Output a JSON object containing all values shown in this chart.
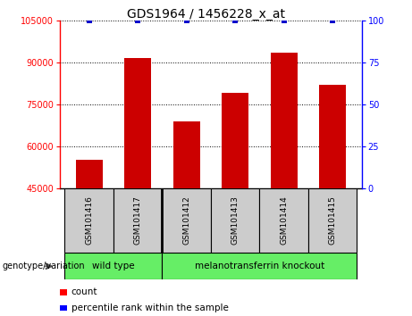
{
  "title": "GDS1964 / 1456228_x_at",
  "samples": [
    "GSM101416",
    "GSM101417",
    "GSM101412",
    "GSM101413",
    "GSM101414",
    "GSM101415"
  ],
  "counts": [
    55000,
    91500,
    69000,
    79000,
    93500,
    82000
  ],
  "percentile_ranks": [
    100,
    100,
    100,
    100,
    100,
    100
  ],
  "ylim_left": [
    45000,
    105000
  ],
  "ylim_right": [
    0,
    100
  ],
  "yticks_left": [
    45000,
    60000,
    75000,
    90000,
    105000
  ],
  "yticks_right": [
    0,
    25,
    50,
    75,
    100
  ],
  "bar_color": "#cc0000",
  "percentile_color": "#0000cc",
  "group1_label": "wild type",
  "group2_label": "melanotransferrin knockout",
  "group_bg_color": "#66ee66",
  "label_bg_color": "#cccccc",
  "legend_count_label": "count",
  "legend_pct_label": "percentile rank within the sample",
  "genotype_label": "genotype/variation"
}
